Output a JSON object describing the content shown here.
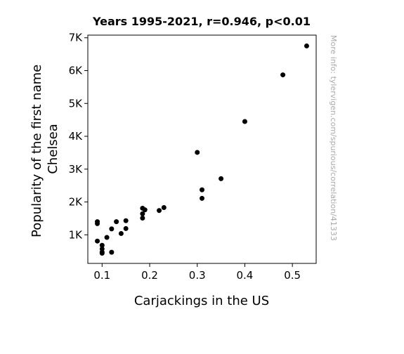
{
  "chart_data": {
    "type": "scatter",
    "title": "Years 1995-2021, r=0.946, p<0.01",
    "xlabel": "Carjackings in the US",
    "ylabel_lines": [
      "Popularity of the first name",
      "Chelsea"
    ],
    "watermark": "More info: tylervigen.com/spurious/correlation/41333",
    "xlim": [
      0.07,
      0.55
    ],
    "ylim": [
      130,
      7080
    ],
    "xticks": [
      0.1,
      0.2,
      0.3,
      0.4,
      0.5
    ],
    "xtick_labels": [
      "0.1",
      "0.2",
      "0.3",
      "0.4",
      "0.5"
    ],
    "yticks": [
      1000,
      2000,
      3000,
      4000,
      5000,
      6000,
      7000
    ],
    "ytick_labels": [
      "1K",
      "2K",
      "3K",
      "4K",
      "5K",
      "6K",
      "7K"
    ],
    "grid": false,
    "marker_color": "#000000",
    "points": [
      {
        "x": 0.53,
        "y": 6750
      },
      {
        "x": 0.48,
        "y": 5870
      },
      {
        "x": 0.4,
        "y": 4450
      },
      {
        "x": 0.3,
        "y": 3510
      },
      {
        "x": 0.35,
        "y": 2710
      },
      {
        "x": 0.31,
        "y": 2370
      },
      {
        "x": 0.31,
        "y": 2110
      },
      {
        "x": 0.23,
        "y": 1830
      },
      {
        "x": 0.22,
        "y": 1740
      },
      {
        "x": 0.185,
        "y": 1810
      },
      {
        "x": 0.19,
        "y": 1760
      },
      {
        "x": 0.185,
        "y": 1640
      },
      {
        "x": 0.185,
        "y": 1510
      },
      {
        "x": 0.15,
        "y": 1430
      },
      {
        "x": 0.13,
        "y": 1400
      },
      {
        "x": 0.15,
        "y": 1190
      },
      {
        "x": 0.12,
        "y": 1180
      },
      {
        "x": 0.14,
        "y": 1040
      },
      {
        "x": 0.11,
        "y": 920
      },
      {
        "x": 0.09,
        "y": 1400
      },
      {
        "x": 0.09,
        "y": 1340
      },
      {
        "x": 0.09,
        "y": 810
      },
      {
        "x": 0.1,
        "y": 680
      },
      {
        "x": 0.1,
        "y": 570
      },
      {
        "x": 0.1,
        "y": 470
      },
      {
        "x": 0.1,
        "y": 440
      },
      {
        "x": 0.12,
        "y": 470
      }
    ]
  }
}
